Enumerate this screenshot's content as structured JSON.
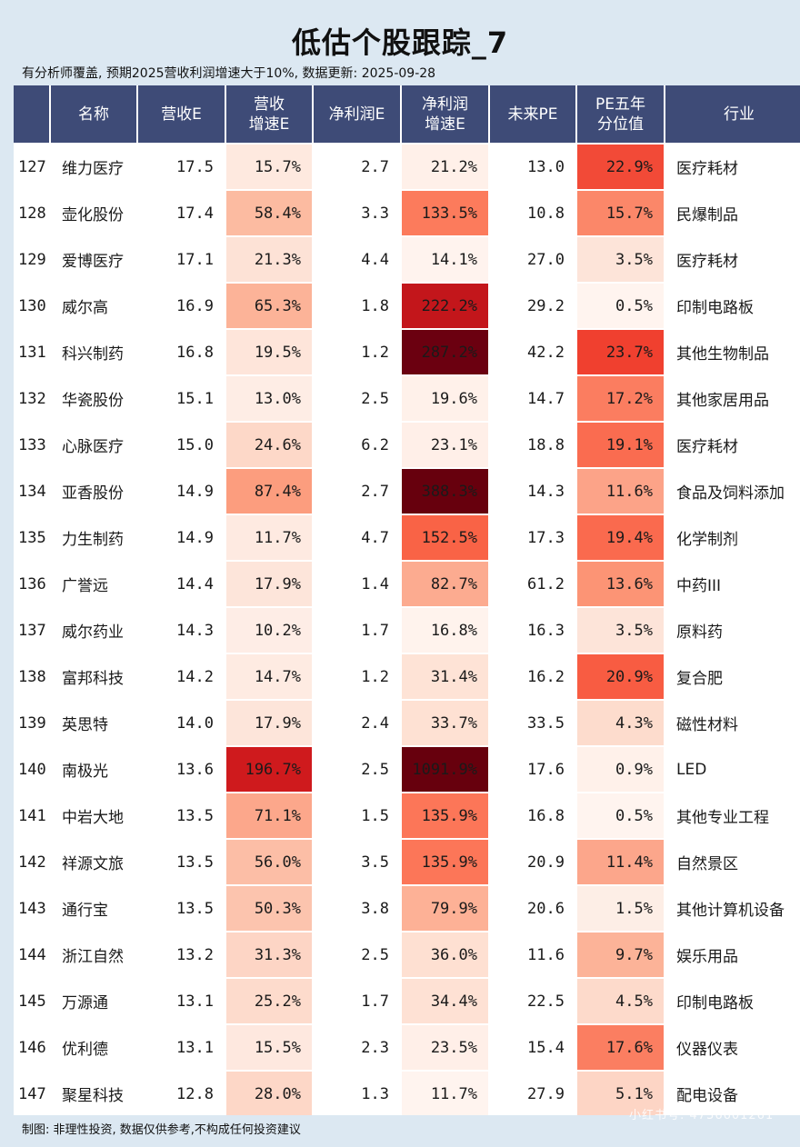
{
  "title": "低估个股跟踪_7",
  "subtitle": "有分析师覆盖, 预期2025营收利润增速大于10%, 数据更新: 2025-09-28",
  "footer": "制图: 非理性投资, 数据仅供参考,不构成任何投资建议",
  "watermark": "小红书号: 4736601261",
  "headers": [
    "",
    "名称",
    "营收E",
    "营收\n增速E",
    "净利润E",
    "净利润\n增速E",
    "未来PE",
    "PE五年\n分位值",
    "行业"
  ],
  "rows": [
    [
      "127",
      "维力医疗",
      "17.5",
      "15.7%",
      "2.7",
      "21.2%",
      "13.0",
      "22.9%",
      "医疗耗材"
    ],
    [
      "128",
      "壶化股份",
      "17.4",
      "58.4%",
      "3.3",
      "133.5%",
      "10.8",
      "15.7%",
      "民爆制品"
    ],
    [
      "129",
      "爱博医疗",
      "17.1",
      "21.3%",
      "4.4",
      "14.1%",
      "27.0",
      "3.5%",
      "医疗耗材"
    ],
    [
      "130",
      "威尔高",
      "16.9",
      "65.3%",
      "1.8",
      "222.2%",
      "29.2",
      "0.5%",
      "印制电路板"
    ],
    [
      "131",
      "科兴制药",
      "16.8",
      "19.5%",
      "1.2",
      "287.2%",
      "42.2",
      "23.7%",
      "其他生物制品"
    ],
    [
      "132",
      "华瓷股份",
      "15.1",
      "13.0%",
      "2.5",
      "19.6%",
      "14.7",
      "17.2%",
      "其他家居用品"
    ],
    [
      "133",
      "心脉医疗",
      "15.0",
      "24.6%",
      "6.2",
      "23.1%",
      "18.8",
      "19.1%",
      "医疗耗材"
    ],
    [
      "134",
      "亚香股份",
      "14.9",
      "87.4%",
      "2.7",
      "388.3%",
      "14.3",
      "11.6%",
      "食品及饲料添加"
    ],
    [
      "135",
      "力生制药",
      "14.9",
      "11.7%",
      "4.7",
      "152.5%",
      "17.3",
      "19.4%",
      "化学制剂"
    ],
    [
      "136",
      "广誉远",
      "14.4",
      "17.9%",
      "1.4",
      "82.7%",
      "61.2",
      "13.6%",
      "中药III"
    ],
    [
      "137",
      "威尔药业",
      "14.3",
      "10.2%",
      "1.7",
      "16.8%",
      "16.3",
      "3.5%",
      "原料药"
    ],
    [
      "138",
      "富邦科技",
      "14.2",
      "14.7%",
      "1.2",
      "31.4%",
      "16.2",
      "20.9%",
      "复合肥"
    ],
    [
      "139",
      "英思特",
      "14.0",
      "17.9%",
      "2.4",
      "33.7%",
      "33.5",
      "4.3%",
      "磁性材料"
    ],
    [
      "140",
      "南极光",
      "13.6",
      "196.7%",
      "2.5",
      "1091.9%",
      "17.6",
      "0.9%",
      "LED"
    ],
    [
      "141",
      "中岩大地",
      "13.5",
      "71.1%",
      "1.5",
      "135.9%",
      "16.8",
      "0.5%",
      "其他专业工程"
    ],
    [
      "142",
      "祥源文旅",
      "13.5",
      "56.0%",
      "3.5",
      "135.9%",
      "20.9",
      "11.4%",
      "自然景区"
    ],
    [
      "143",
      "通行宝",
      "13.5",
      "50.3%",
      "3.8",
      "79.9%",
      "20.6",
      "1.5%",
      "其他计算机设备"
    ],
    [
      "144",
      "浙江自然",
      "13.2",
      "31.3%",
      "2.5",
      "36.0%",
      "11.6",
      "9.7%",
      "娱乐用品"
    ],
    [
      "145",
      "万源通",
      "13.1",
      "25.2%",
      "1.7",
      "34.4%",
      "22.5",
      "4.5%",
      "印制电路板"
    ],
    [
      "146",
      "优利德",
      "13.1",
      "15.5%",
      "2.3",
      "23.5%",
      "15.4",
      "17.6%",
      "仪器仪表"
    ],
    [
      "147",
      "聚星科技",
      "12.8",
      "28.0%",
      "1.3",
      "11.7%",
      "27.9",
      "5.1%",
      "配电设备"
    ]
  ],
  "heat_colors": {
    "rev_growth": [
      "#fee9df",
      "#fcbba1",
      "#fde2d6",
      "#fcb398",
      "#fee5da",
      "#feede5",
      "#fdd8c8",
      "#fc9d7e",
      "#feeae1",
      "#fde5da",
      "#feede6",
      "#feebe2",
      "#fde5da",
      "#cf1a1d",
      "#fca78b",
      "#fcbea6",
      "#fcc4ae",
      "#fdd5c5",
      "#fddbcc",
      "#fee8df",
      "#fdd7c7"
    ],
    "np_growth": [
      "#fff0e9",
      "#fc7b5c",
      "#fff3ee",
      "#c3161b",
      "#6b0010",
      "#fff1ea",
      "#ffefe8",
      "#67000d",
      "#f96346",
      "#fcab90",
      "#fff3ed",
      "#fee3d6",
      "#fee1d3",
      "#67000d",
      "#fc7658",
      "#fc7658",
      "#fdb196",
      "#fee0d2",
      "#fee1d4",
      "#ffefe8",
      "#fff4ef"
    ],
    "pe_pct": [
      "#f24a37",
      "#fb8769",
      "#fde4d9",
      "#fff4ef",
      "#f0402f",
      "#fb7d60",
      "#fa6c50",
      "#fca388",
      "#fa6a4e",
      "#fc9475",
      "#fde4d9",
      "#f85c42",
      "#fddccd",
      "#fff1ea",
      "#fff4ef",
      "#fca68b",
      "#fdeee6",
      "#fcb398",
      "#fddacb",
      "#fb7e61",
      "#fdd5c5"
    ]
  }
}
